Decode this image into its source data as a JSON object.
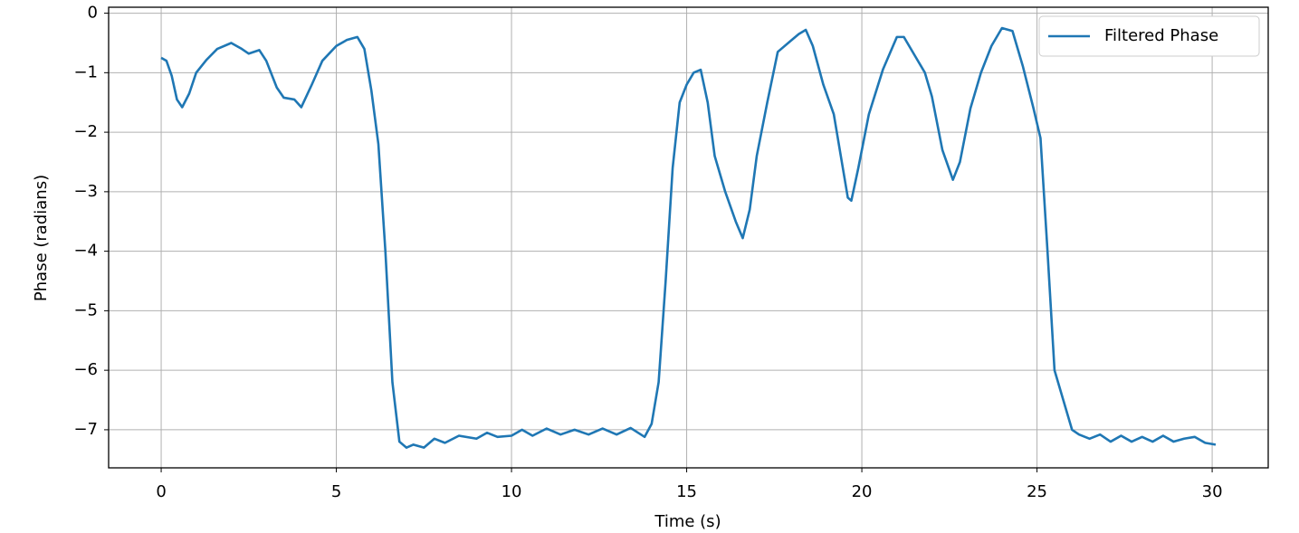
{
  "chart_data": {
    "type": "line",
    "x_label": "Time (s)",
    "y_label": "Phase (radians)",
    "x": [
      0,
      0.15,
      0.3,
      0.45,
      0.6,
      0.8,
      1.0,
      1.3,
      1.6,
      2.0,
      2.3,
      2.5,
      2.8,
      3.0,
      3.3,
      3.5,
      3.8,
      4.0,
      4.3,
      4.6,
      5.0,
      5.3,
      5.6,
      5.8,
      6.0,
      6.2,
      6.4,
      6.6,
      6.8,
      7.0,
      7.2,
      7.5,
      7.8,
      8.1,
      8.5,
      9.0,
      9.3,
      9.6,
      10.0,
      10.3,
      10.6,
      11.0,
      11.4,
      11.8,
      12.2,
      12.6,
      13.0,
      13.4,
      13.8,
      14.0,
      14.2,
      14.4,
      14.6,
      14.8,
      15.0,
      15.2,
      15.4,
      15.6,
      15.8,
      16.1,
      16.4,
      16.6,
      16.8,
      17.0,
      17.3,
      17.6,
      18.0,
      18.2,
      18.4,
      18.6,
      18.9,
      19.2,
      19.4,
      19.6,
      19.7,
      19.9,
      20.2,
      20.6,
      21.0,
      21.2,
      21.5,
      21.8,
      22.0,
      22.3,
      22.6,
      22.8,
      23.1,
      23.4,
      23.7,
      24.0,
      24.3,
      24.6,
      24.9,
      25.1,
      25.3,
      25.5,
      25.8,
      26.0,
      26.2,
      26.5,
      26.8,
      27.1,
      27.4,
      27.7,
      28.0,
      28.3,
      28.6,
      28.9,
      29.2,
      29.5,
      29.8,
      30.1
    ],
    "series": [
      {
        "name": "Filtered Phase",
        "color": "#1f77b4",
        "values": [
          -0.75,
          -0.8,
          -1.05,
          -1.45,
          -1.58,
          -1.35,
          -1.0,
          -0.78,
          -0.6,
          -0.5,
          -0.6,
          -0.68,
          -0.62,
          -0.8,
          -1.25,
          -1.42,
          -1.45,
          -1.58,
          -1.2,
          -0.8,
          -0.55,
          -0.45,
          -0.4,
          -0.6,
          -1.3,
          -2.2,
          -4.0,
          -6.2,
          -7.2,
          -7.3,
          -7.25,
          -7.3,
          -7.15,
          -7.22,
          -7.1,
          -7.15,
          -7.05,
          -7.12,
          -7.1,
          -7.0,
          -7.1,
          -6.98,
          -7.08,
          -7.0,
          -7.08,
          -6.98,
          -7.08,
          -6.97,
          -7.12,
          -6.9,
          -6.2,
          -4.5,
          -2.6,
          -1.5,
          -1.2,
          -1.0,
          -0.95,
          -1.5,
          -2.4,
          -3.0,
          -3.5,
          -3.78,
          -3.3,
          -2.4,
          -1.5,
          -0.65,
          -0.45,
          -0.35,
          -0.28,
          -0.55,
          -1.2,
          -1.7,
          -2.4,
          -3.1,
          -3.15,
          -2.6,
          -1.7,
          -0.95,
          -0.4,
          -0.4,
          -0.7,
          -1.0,
          -1.4,
          -2.3,
          -2.8,
          -2.5,
          -1.6,
          -1.0,
          -0.55,
          -0.25,
          -0.3,
          -0.9,
          -1.6,
          -2.1,
          -4.0,
          -6.0,
          -6.6,
          -7.0,
          -7.08,
          -7.15,
          -7.08,
          -7.2,
          -7.1,
          -7.2,
          -7.12,
          -7.2,
          -7.1,
          -7.2,
          -7.15,
          -7.12,
          -7.22,
          -7.25
        ]
      }
    ],
    "xlim": [
      -1.5,
      31.6
    ],
    "ylim": [
      -7.64,
      0.1
    ],
    "xticks": [
      0,
      5,
      10,
      15,
      20,
      25,
      30
    ],
    "yticks": [
      0,
      {
        "value": -1,
        "label": "−1"
      },
      {
        "value": -2,
        "label": "−2"
      },
      {
        "value": -3,
        "label": "−3"
      },
      {
        "value": -4,
        "label": "−4"
      },
      {
        "value": -5,
        "label": "−5"
      },
      {
        "value": -6,
        "label": "−6"
      },
      {
        "value": -7,
        "label": "−7"
      }
    ],
    "grid": true,
    "legend": "upper right"
  }
}
